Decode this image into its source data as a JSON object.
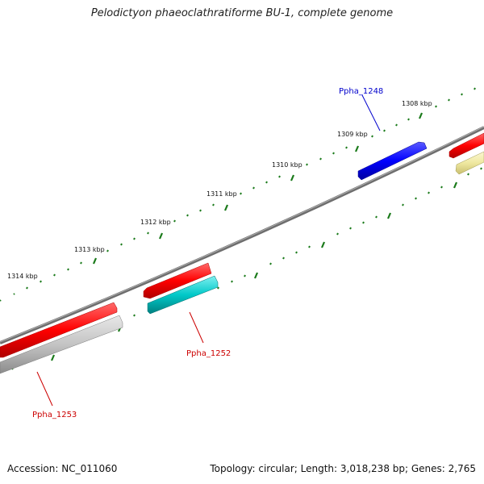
{
  "title": "Pelodictyon phaeoclathratiforme BU-1, complete genome",
  "accession": "Accession: NC_011060",
  "summary": "Topology: circular; Length: 3,018,238 bp; Genes: 2,765",
  "kbp_labels": [
    "1308 kbp",
    "1309 kbp",
    "1310 kbp",
    "1311 kbp",
    "1312 kbp",
    "1313 kbp",
    "1314 kbp"
  ],
  "gene_labels": [
    {
      "text": "Ppha_1248",
      "color": "#0000cc"
    },
    {
      "text": "Ppha_1252",
      "color": "#cc0000"
    },
    {
      "text": "Ppha_1253",
      "color": "#cc0000"
    }
  ],
  "colors": {
    "backbone": "#7a7a7a",
    "ticks": "#1a7a1a",
    "gene_red": "#ff0000",
    "gene_blue": "#0000ff",
    "gene_cyan": "#00c8c8",
    "gene_gray": "#bfbfbf",
    "gene_yellow": "#efe8a0"
  }
}
